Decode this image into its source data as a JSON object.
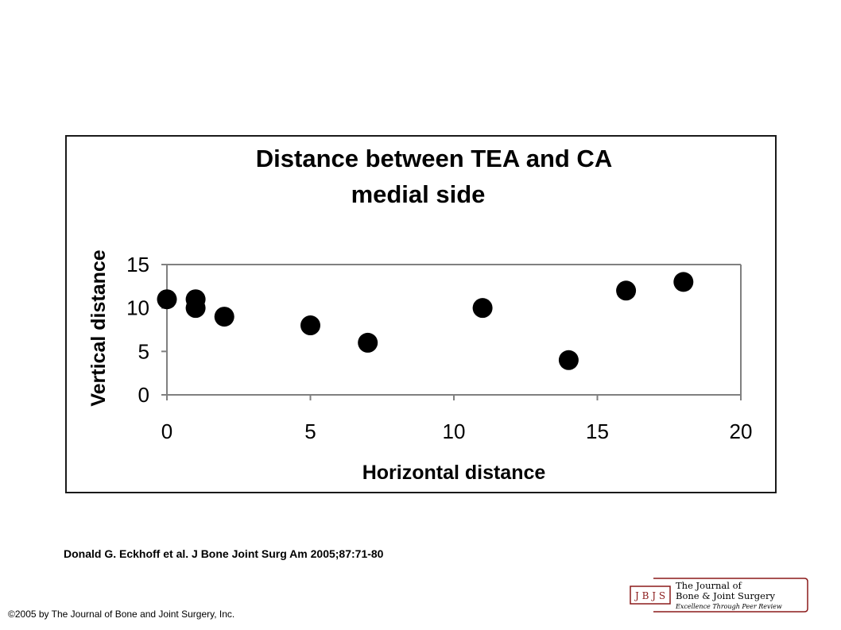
{
  "chart_data": {
    "type": "scatter",
    "title": [
      "Distance between TEA and CA",
      "medial side"
    ],
    "xlabel": "Horizontal distance",
    "ylabel": "Vertical distance",
    "xlim": [
      0,
      20
    ],
    "ylim": [
      0,
      15
    ],
    "xticks": [
      0,
      5,
      10,
      15,
      20
    ],
    "yticks": [
      0,
      5,
      10,
      15
    ],
    "grid": false,
    "legend": "none",
    "marker_color": "#000000",
    "axis_color": "#808080",
    "points": [
      {
        "x": 0,
        "y": 11
      },
      {
        "x": 1,
        "y": 11
      },
      {
        "x": 1,
        "y": 10
      },
      {
        "x": 2,
        "y": 9
      },
      {
        "x": 5,
        "y": 8
      },
      {
        "x": 7,
        "y": 6
      },
      {
        "x": 11,
        "y": 10
      },
      {
        "x": 14,
        "y": 4
      },
      {
        "x": 16,
        "y": 12
      },
      {
        "x": 18,
        "y": 13
      }
    ]
  },
  "citation": "Donald G. Eckhoff et al. J Bone Joint Surg Am 2005;87:71-80",
  "copyright": "©2005 by The Journal of Bone and Joint Surgery, Inc.",
  "logo": {
    "monogram": "J B J S",
    "line1": "The Journal of",
    "line2": "Bone & Joint Surgery",
    "tagline": "Excellence Through Peer Review",
    "color": "#8b1a1a"
  }
}
